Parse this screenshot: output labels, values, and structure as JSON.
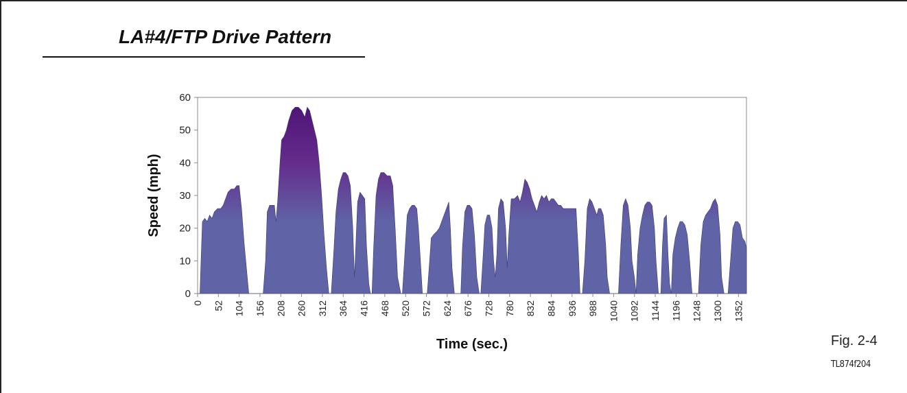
{
  "figure": {
    "heading": "LA#4/FTP Drive Pattern",
    "fig_label": "Fig. 2-4",
    "code_label": "TL874f204"
  },
  "colors": {
    "fill_top": "#4f1577",
    "fill_mid": "#652c8c",
    "fill_base": "#6064a7",
    "axis": "#888888"
  },
  "chart_data": {
    "type": "area",
    "title": "",
    "xlabel": "Time (sec.)",
    "ylabel": "Speed (mph)",
    "xlim": [
      0,
      1372
    ],
    "ylim": [
      0,
      60
    ],
    "x_ticks": [
      0,
      52,
      104,
      156,
      208,
      260,
      312,
      364,
      416,
      468,
      520,
      572,
      624,
      676,
      728,
      780,
      832,
      884,
      936,
      988,
      1040,
      1092,
      1144,
      1196,
      1248,
      1300,
      1352
    ],
    "y_ticks": [
      0,
      10,
      20,
      30,
      40,
      50,
      60
    ],
    "grid": false,
    "legend": "none",
    "series": [
      {
        "points": [
          [
            0,
            0
          ],
          [
            6,
            0
          ],
          [
            8,
            8
          ],
          [
            12,
            22
          ],
          [
            18,
            23
          ],
          [
            24,
            22
          ],
          [
            30,
            24
          ],
          [
            36,
            23
          ],
          [
            42,
            25
          ],
          [
            50,
            26
          ],
          [
            58,
            26
          ],
          [
            64,
            27
          ],
          [
            70,
            29
          ],
          [
            76,
            31
          ],
          [
            84,
            32
          ],
          [
            92,
            32
          ],
          [
            98,
            33
          ],
          [
            104,
            33
          ],
          [
            110,
            26
          ],
          [
            116,
            16
          ],
          [
            122,
            8
          ],
          [
            128,
            0
          ],
          [
            164,
            0
          ],
          [
            170,
            10
          ],
          [
            174,
            25
          ],
          [
            180,
            27
          ],
          [
            192,
            27
          ],
          [
            196,
            22
          ],
          [
            200,
            28
          ],
          [
            206,
            40
          ],
          [
            210,
            47
          ],
          [
            216,
            48
          ],
          [
            222,
            50
          ],
          [
            228,
            53
          ],
          [
            236,
            56
          ],
          [
            244,
            57
          ],
          [
            252,
            57
          ],
          [
            260,
            56
          ],
          [
            268,
            54
          ],
          [
            274,
            57
          ],
          [
            280,
            56
          ],
          [
            286,
            53
          ],
          [
            292,
            50
          ],
          [
            298,
            47
          ],
          [
            304,
            40
          ],
          [
            310,
            30
          ],
          [
            316,
            18
          ],
          [
            322,
            8
          ],
          [
            328,
            0
          ],
          [
            334,
            0
          ],
          [
            340,
            12
          ],
          [
            346,
            25
          ],
          [
            352,
            32
          ],
          [
            358,
            35
          ],
          [
            364,
            37
          ],
          [
            370,
            37
          ],
          [
            376,
            36
          ],
          [
            382,
            33
          ],
          [
            388,
            20
          ],
          [
            392,
            5
          ],
          [
            396,
            16
          ],
          [
            400,
            28
          ],
          [
            406,
            31
          ],
          [
            412,
            30
          ],
          [
            418,
            29
          ],
          [
            422,
            15
          ],
          [
            428,
            3
          ],
          [
            432,
            0
          ],
          [
            436,
            0
          ],
          [
            440,
            14
          ],
          [
            446,
            30
          ],
          [
            452,
            35
          ],
          [
            458,
            37
          ],
          [
            466,
            37
          ],
          [
            474,
            36
          ],
          [
            482,
            36
          ],
          [
            488,
            33
          ],
          [
            494,
            20
          ],
          [
            500,
            5
          ],
          [
            508,
            0
          ],
          [
            512,
            0
          ],
          [
            518,
            12
          ],
          [
            524,
            24
          ],
          [
            530,
            26
          ],
          [
            536,
            27
          ],
          [
            542,
            27
          ],
          [
            548,
            26
          ],
          [
            552,
            20
          ],
          [
            558,
            8
          ],
          [
            562,
            0
          ],
          [
            574,
            0
          ],
          [
            580,
            10
          ],
          [
            584,
            17
          ],
          [
            590,
            18
          ],
          [
            598,
            19
          ],
          [
            604,
            20
          ],
          [
            610,
            22
          ],
          [
            616,
            24
          ],
          [
            622,
            26
          ],
          [
            628,
            28
          ],
          [
            632,
            20
          ],
          [
            636,
            8
          ],
          [
            642,
            0
          ],
          [
            658,
            0
          ],
          [
            662,
            14
          ],
          [
            668,
            25
          ],
          [
            674,
            27
          ],
          [
            680,
            27
          ],
          [
            686,
            26
          ],
          [
            692,
            18
          ],
          [
            698,
            5
          ],
          [
            704,
            0
          ],
          [
            708,
            0
          ],
          [
            714,
            12
          ],
          [
            718,
            21
          ],
          [
            724,
            24
          ],
          [
            730,
            24
          ],
          [
            736,
            20
          ],
          [
            740,
            10
          ],
          [
            744,
            5
          ],
          [
            748,
            12
          ],
          [
            752,
            26
          ],
          [
            758,
            29
          ],
          [
            764,
            28
          ],
          [
            770,
            20
          ],
          [
            774,
            8
          ],
          [
            778,
            18
          ],
          [
            784,
            29
          ],
          [
            792,
            29
          ],
          [
            800,
            30
          ],
          [
            806,
            28
          ],
          [
            812,
            31
          ],
          [
            818,
            35
          ],
          [
            824,
            34
          ],
          [
            830,
            32
          ],
          [
            836,
            29
          ],
          [
            842,
            27
          ],
          [
            848,
            25
          ],
          [
            854,
            28
          ],
          [
            860,
            30
          ],
          [
            866,
            29
          ],
          [
            872,
            30
          ],
          [
            878,
            28
          ],
          [
            884,
            29
          ],
          [
            890,
            29
          ],
          [
            896,
            28
          ],
          [
            902,
            27
          ],
          [
            908,
            27
          ],
          [
            914,
            26
          ],
          [
            922,
            26
          ],
          [
            930,
            26
          ],
          [
            938,
            26
          ],
          [
            946,
            26
          ],
          [
            952,
            12
          ],
          [
            956,
            0
          ],
          [
            962,
            0
          ],
          [
            968,
            10
          ],
          [
            974,
            26
          ],
          [
            980,
            29
          ],
          [
            986,
            28
          ],
          [
            992,
            26
          ],
          [
            998,
            24
          ],
          [
            1002,
            26
          ],
          [
            1008,
            26
          ],
          [
            1014,
            24
          ],
          [
            1020,
            15
          ],
          [
            1024,
            5
          ],
          [
            1030,
            0
          ],
          [
            1052,
            0
          ],
          [
            1058,
            15
          ],
          [
            1064,
            27
          ],
          [
            1070,
            29
          ],
          [
            1076,
            27
          ],
          [
            1082,
            20
          ],
          [
            1086,
            10
          ],
          [
            1092,
            5
          ],
          [
            1096,
            0
          ],
          [
            1100,
            12
          ],
          [
            1106,
            20
          ],
          [
            1112,
            24
          ],
          [
            1118,
            27
          ],
          [
            1124,
            28
          ],
          [
            1130,
            28
          ],
          [
            1136,
            27
          ],
          [
            1142,
            20
          ],
          [
            1146,
            10
          ],
          [
            1152,
            0
          ],
          [
            1158,
            0
          ],
          [
            1162,
            15
          ],
          [
            1166,
            23
          ],
          [
            1172,
            24
          ],
          [
            1176,
            12
          ],
          [
            1180,
            3
          ],
          [
            1184,
            0
          ],
          [
            1188,
            12
          ],
          [
            1194,
            17
          ],
          [
            1200,
            20
          ],
          [
            1206,
            22
          ],
          [
            1212,
            22
          ],
          [
            1218,
            21
          ],
          [
            1224,
            18
          ],
          [
            1230,
            10
          ],
          [
            1236,
            0
          ],
          [
            1252,
            0
          ],
          [
            1258,
            15
          ],
          [
            1264,
            22
          ],
          [
            1270,
            24
          ],
          [
            1276,
            25
          ],
          [
            1282,
            26
          ],
          [
            1288,
            28
          ],
          [
            1294,
            29
          ],
          [
            1300,
            27
          ],
          [
            1306,
            18
          ],
          [
            1310,
            5
          ],
          [
            1316,
            0
          ],
          [
            1326,
            0
          ],
          [
            1332,
            10
          ],
          [
            1338,
            20
          ],
          [
            1344,
            22
          ],
          [
            1350,
            22
          ],
          [
            1356,
            21
          ],
          [
            1362,
            17
          ],
          [
            1368,
            16
          ],
          [
            1372,
            14
          ]
        ]
      }
    ]
  }
}
